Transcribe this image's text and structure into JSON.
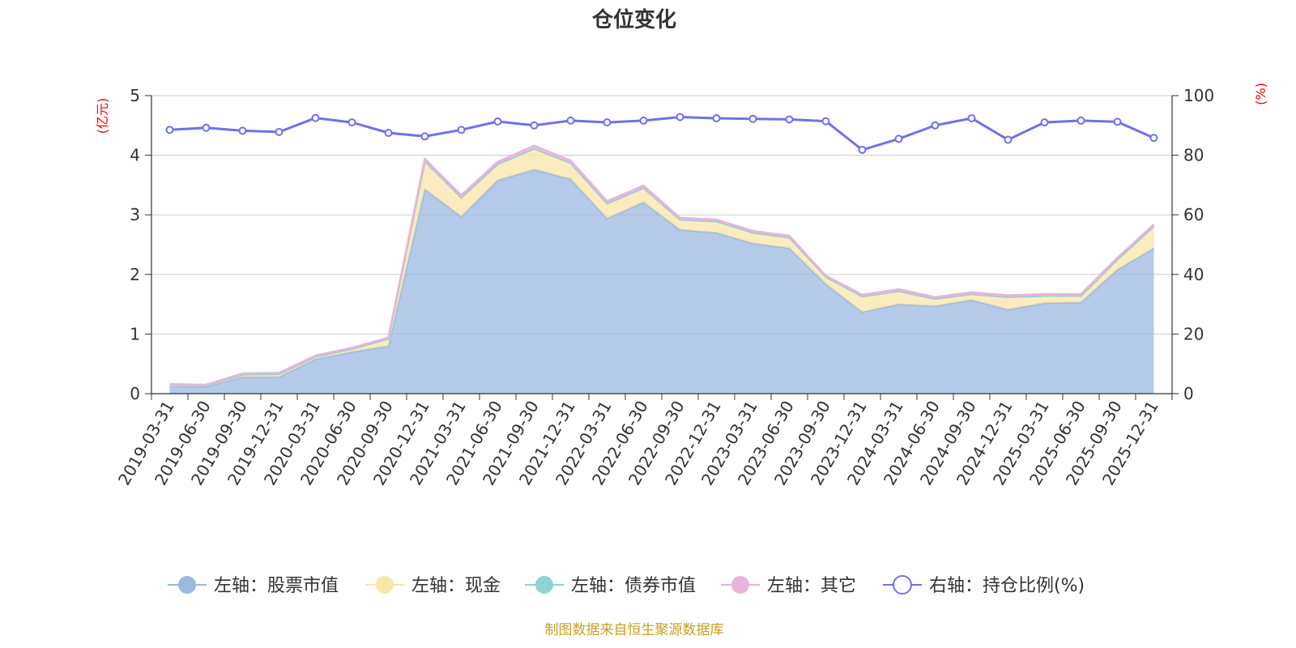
{
  "chart_data": {
    "type": "area",
    "title": "仓位变化",
    "left_axis_unit": "(亿元)",
    "right_axis_unit": "(%)",
    "ylim_left": [
      0,
      5
    ],
    "ylim_right": [
      0,
      100
    ],
    "yticks_left": [
      "0",
      "1",
      "2",
      "3",
      "4",
      "5"
    ],
    "yticks_right": [
      "0",
      "20",
      "40",
      "60",
      "80",
      "100"
    ],
    "categories": [
      "2019-03-31",
      "2019-06-30",
      "2019-09-30",
      "2019-12-31",
      "2020-03-31",
      "2020-06-30",
      "2020-09-30",
      "2020-12-31",
      "2021-03-31",
      "2021-06-30",
      "2021-09-30",
      "2021-12-31",
      "2022-03-31",
      "2022-06-30",
      "2022-09-30",
      "2022-12-31",
      "2023-03-31",
      "2023-06-30",
      "2023-09-30",
      "2023-12-31",
      "2024-03-31",
      "2024-06-30",
      "2024-09-30",
      "2024-12-31",
      "2025-03-31",
      "2025-06-30",
      "2025-09-30",
      "2025-12-31"
    ],
    "series": [
      {
        "name": "左轴：股票市值",
        "axis": "left",
        "color": "#9bb8e0",
        "values": [
          0.12,
          0.12,
          0.28,
          0.28,
          0.58,
          0.7,
          0.8,
          3.43,
          2.97,
          3.58,
          3.76,
          3.6,
          2.94,
          3.21,
          2.75,
          2.7,
          2.52,
          2.44,
          1.84,
          1.37,
          1.5,
          1.47,
          1.57,
          1.41,
          1.52,
          1.53,
          2.08,
          2.44
        ]
      },
      {
        "name": "左轴：现金",
        "axis": "left",
        "color": "#f8e6a8",
        "values": [
          0.03,
          0.02,
          0.04,
          0.05,
          0.04,
          0.05,
          0.12,
          0.47,
          0.32,
          0.27,
          0.35,
          0.27,
          0.25,
          0.24,
          0.17,
          0.19,
          0.18,
          0.18,
          0.12,
          0.26,
          0.22,
          0.12,
          0.1,
          0.21,
          0.12,
          0.11,
          0.17,
          0.37
        ]
      },
      {
        "name": "左轴：债券市值",
        "axis": "left",
        "color": "#8fd4d0",
        "values": [
          0,
          0,
          0,
          0,
          0,
          0,
          0,
          0,
          0,
          0,
          0,
          0,
          0,
          0,
          0,
          0,
          0,
          0,
          0,
          0,
          0,
          0,
          0,
          0,
          0,
          0,
          0,
          0
        ]
      },
      {
        "name": "左轴：其它",
        "axis": "left",
        "color": "#e8b4dc",
        "values": [
          0.01,
          0.01,
          0.02,
          0.02,
          0.02,
          0.02,
          0.02,
          0.04,
          0.04,
          0.04,
          0.05,
          0.04,
          0.04,
          0.04,
          0.03,
          0.03,
          0.03,
          0.03,
          0.02,
          0.03,
          0.03,
          0.03,
          0.03,
          0.03,
          0.03,
          0.03,
          0.03,
          0.03
        ]
      },
      {
        "name": "右轴：持仓比例(%)",
        "axis": "right",
        "color": "#7070ee",
        "values": [
          88.5,
          89.2,
          88.2,
          87.8,
          92.5,
          91.0,
          87.5,
          86.3,
          88.5,
          91.3,
          90.0,
          91.6,
          91.0,
          91.6,
          92.8,
          92.4,
          92.2,
          92.0,
          91.4,
          81.8,
          85.5,
          90.0,
          92.4,
          85.2,
          91.0,
          91.6,
          91.2,
          85.8
        ]
      }
    ]
  },
  "source_text": "制图数据来自恒生聚源数据库"
}
